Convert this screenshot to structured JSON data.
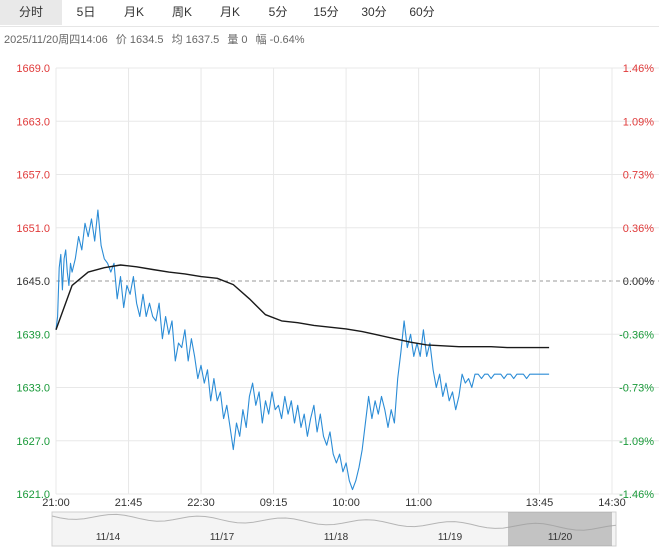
{
  "tabs": [
    {
      "label": "分时",
      "active": true
    },
    {
      "label": "5日",
      "active": false
    },
    {
      "label": "月K",
      "active": false
    },
    {
      "label": "周K",
      "active": false
    },
    {
      "label": "月K",
      "active": false
    },
    {
      "label": "5分",
      "active": false
    },
    {
      "label": "15分",
      "active": false
    },
    {
      "label": "30分",
      "active": false
    },
    {
      "label": "60分",
      "active": false
    }
  ],
  "info": {
    "datetime": "2025/11/20周四14:06",
    "price": "价 1634.5",
    "avg": "均 1637.5",
    "volume": "量 0",
    "change": "幅 -0.64%"
  },
  "colors": {
    "up": "#e03a3a",
    "down": "#1a9a3a",
    "price_line": "#2b8cd6",
    "avg_line": "#1a1a1a",
    "grid": "#e8e8e8",
    "ref_line": "#999999"
  },
  "chart_data": {
    "type": "line",
    "ylim": [
      1621.0,
      1669.0
    ],
    "reference_price": 1645.0,
    "y_ticks_left": [
      "1669.0",
      "1663.0",
      "1657.0",
      "1651.0",
      "1645.0",
      "1639.0",
      "1633.0",
      "1627.0",
      "1621.0"
    ],
    "y_ticks_right": [
      "1.46%",
      "1.09%",
      "0.73%",
      "0.36%",
      "0.00%",
      "-0.36%",
      "-0.73%",
      "-1.09%",
      "-1.46%"
    ],
    "x_ticks": [
      "21:00",
      "21:45",
      "22:30",
      "09:15",
      "10:00",
      "11:00",
      "13:45",
      "14:30"
    ],
    "x_range": [
      0,
      345
    ],
    "x_tick_positions": [
      0,
      45,
      90,
      135,
      180,
      225,
      300,
      345
    ],
    "series": [
      {
        "x": [
          0,
          1,
          2,
          3,
          4,
          5,
          6,
          7,
          8,
          9,
          10,
          12,
          14,
          16,
          18,
          20,
          22,
          24,
          26,
          28,
          30,
          32,
          34,
          36,
          38,
          40,
          42,
          44,
          46,
          48,
          50,
          52,
          54,
          56,
          58,
          60,
          62,
          64,
          66,
          68,
          70,
          72,
          74,
          76,
          78,
          80,
          82,
          84,
          86,
          88,
          90,
          92,
          94,
          96,
          98,
          100,
          102,
          104,
          106,
          108,
          110,
          112,
          114,
          116,
          118,
          120,
          122,
          124,
          126,
          128,
          130,
          132,
          134,
          136,
          138,
          140,
          142,
          144,
          146,
          148,
          150,
          152,
          154,
          156,
          158,
          160,
          162,
          164,
          166,
          168,
          170,
          172,
          174,
          176,
          178,
          180,
          182,
          184,
          186,
          188,
          190,
          192,
          194,
          196,
          198,
          200,
          202,
          204,
          206,
          208,
          210,
          212,
          214,
          216,
          218,
          220,
          222,
          224,
          226,
          228,
          230,
          232,
          234,
          236,
          238,
          240,
          242,
          244,
          246,
          248,
          250,
          252,
          254,
          256,
          258,
          260,
          262,
          264,
          266,
          268,
          270,
          272,
          274,
          276,
          278,
          280,
          282,
          284,
          286,
          288,
          290,
          292,
          294,
          296,
          298,
          300,
          302,
          304,
          306
        ],
        "values": [
          1639.5,
          1641.0,
          1646.5,
          1648.0,
          1644.0,
          1647.5,
          1648.5,
          1646.0,
          1644.5,
          1647.0,
          1646.0,
          1647.5,
          1650.0,
          1648.5,
          1651.5,
          1650.0,
          1652.0,
          1649.5,
          1653.0,
          1649.0,
          1647.5,
          1647.0,
          1646.0,
          1647.0,
          1643.0,
          1645.5,
          1642.0,
          1644.5,
          1643.5,
          1645.5,
          1642.5,
          1641.0,
          1643.5,
          1641.0,
          1642.5,
          1641.0,
          1640.5,
          1642.5,
          1638.5,
          1641.0,
          1639.0,
          1640.5,
          1636.0,
          1638.0,
          1637.5,
          1639.5,
          1636.0,
          1638.5,
          1636.5,
          1634.0,
          1635.5,
          1633.5,
          1635.0,
          1631.5,
          1634.0,
          1631.5,
          1632.5,
          1629.5,
          1631.0,
          1628.5,
          1626.0,
          1629.0,
          1627.5,
          1630.5,
          1628.5,
          1632.0,
          1633.5,
          1631.0,
          1632.5,
          1629.0,
          1631.5,
          1630.0,
          1632.5,
          1630.5,
          1631.0,
          1629.5,
          1632.0,
          1630.0,
          1631.5,
          1629.0,
          1631.0,
          1628.5,
          1630.0,
          1627.5,
          1629.5,
          1631.0,
          1628.0,
          1630.0,
          1627.5,
          1626.5,
          1628.0,
          1625.5,
          1624.5,
          1625.5,
          1623.5,
          1624.5,
          1622.5,
          1621.5,
          1622.5,
          1624.0,
          1626.0,
          1629.0,
          1632.0,
          1629.5,
          1631.5,
          1630.0,
          1632.0,
          1630.5,
          1628.5,
          1630.5,
          1629.0,
          1634.0,
          1637.0,
          1640.5,
          1637.5,
          1639.0,
          1636.5,
          1638.0,
          1636.5,
          1639.5,
          1636.5,
          1638.0,
          1635.0,
          1633.0,
          1634.5,
          1632.0,
          1633.5,
          1631.5,
          1632.5,
          1630.5,
          1632.0,
          1634.5,
          1633.5,
          1634.0,
          1633.0,
          1634.5,
          1634.5,
          1634.0,
          1634.5,
          1634.5,
          1634.0,
          1634.5,
          1634.5,
          1634.5,
          1634.0,
          1634.5,
          1634.5,
          1634.0,
          1634.5,
          1634.5,
          1634.5,
          1634.0,
          1634.5,
          1634.5,
          1634.5,
          1634.5,
          1634.5,
          1634.5,
          1634.5
        ]
      },
      {
        "x": [
          0,
          10,
          20,
          30,
          40,
          50,
          60,
          70,
          80,
          90,
          100,
          110,
          120,
          130,
          140,
          150,
          160,
          170,
          180,
          190,
          200,
          210,
          220,
          230,
          240,
          250,
          260,
          270,
          280,
          290,
          300,
          306
        ],
        "values": [
          1639.5,
          1644.5,
          1646.0,
          1646.5,
          1646.8,
          1646.6,
          1646.3,
          1646.0,
          1645.8,
          1645.5,
          1645.3,
          1644.6,
          1643.0,
          1641.2,
          1640.5,
          1640.3,
          1640.0,
          1639.8,
          1639.6,
          1639.3,
          1638.9,
          1638.5,
          1638.1,
          1637.8,
          1637.7,
          1637.6,
          1637.6,
          1637.6,
          1637.5,
          1637.5,
          1637.5,
          1637.5
        ]
      }
    ],
    "navigator": {
      "labels": [
        "11/14",
        "11/17",
        "11/18",
        "11/19",
        "11/20"
      ]
    }
  }
}
